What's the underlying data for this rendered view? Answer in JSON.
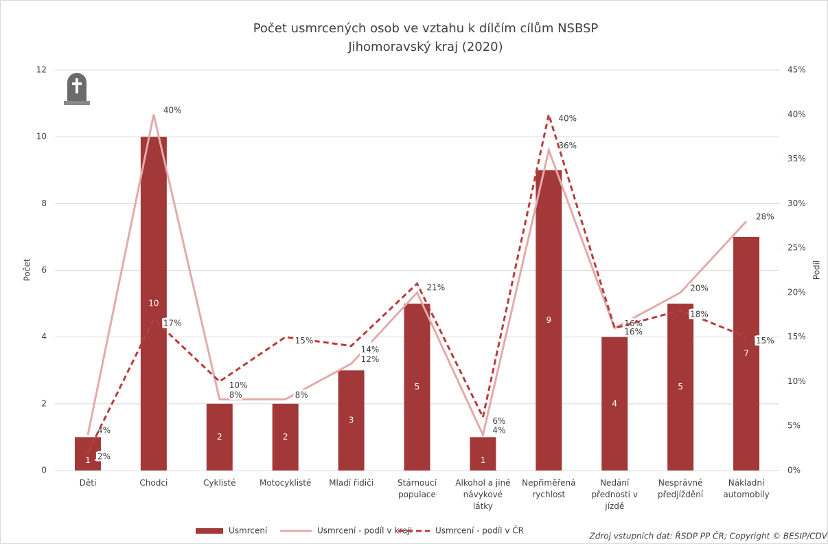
{
  "chart_data": {
    "type": "bar_line",
    "title": "Počet usmrcených osob ve vztahu k dílčím cílům NSBSP",
    "subtitle": "Jihomoravský kraj (2020)",
    "y_label": "Počet",
    "y2_label": "Podíl",
    "source": "Zdroj vstupních dat: ŘSDP PP ČR; Copyright © BESIP/CDV",
    "categories": [
      "Děti",
      "Chodci",
      "Cyklisté",
      "Motocyklisté",
      "Mladí řidiči",
      "Stárnoucí populace",
      "Alkohol a jiné návykové látky",
      "Nepřiměřená rychlost",
      "Nedání přednosti v jízdě",
      "Nesprávné předjíždění",
      "Nákladní automobily"
    ],
    "series": [
      {
        "name": "Usmrcení",
        "color": "#a33838",
        "kind": "bar",
        "values": [
          1,
          10,
          2,
          2,
          3,
          5,
          1,
          9,
          4,
          5,
          7
        ]
      },
      {
        "name": "Usmrcení - podíl v kraji",
        "color": "#e3aaaa",
        "kind": "line",
        "axis": "y2",
        "values": [
          4,
          40,
          8,
          8,
          12,
          20,
          4,
          36,
          16,
          20,
          28
        ],
        "value_labels": [
          "4%",
          "40%",
          "8%",
          "8%",
          "12%",
          "20%",
          "4%",
          "36%",
          "16%",
          "20%",
          "28%"
        ]
      },
      {
        "name": "Usmrcení - podíl v ČR",
        "color": "#b83c3c",
        "kind": "dashed",
        "axis": "y2",
        "values": [
          2,
          17,
          10,
          15,
          14,
          21,
          6,
          40,
          16,
          18,
          15
        ],
        "value_labels": [
          "2%",
          "17%",
          "10%",
          "15%",
          "14%",
          "21%",
          "6%",
          "40%",
          "16%",
          "18%",
          "15%"
        ]
      }
    ],
    "ylim": [
      0,
      12
    ],
    "yticks": [
      0,
      2,
      4,
      6,
      8,
      10,
      12
    ],
    "y2lim": [
      0,
      45
    ],
    "y2ticks": [
      {
        "value": 0,
        "label": "0%"
      },
      {
        "value": 5,
        "label": "5%"
      },
      {
        "value": 10,
        "label": "10%"
      },
      {
        "value": 15,
        "label": "15%"
      },
      {
        "value": 20,
        "label": "20%"
      },
      {
        "value": 25,
        "label": "25%"
      },
      {
        "value": 30,
        "label": "30%"
      },
      {
        "value": 35,
        "label": "35%"
      },
      {
        "value": 40,
        "label": "40%"
      },
      {
        "value": 45,
        "label": "45%"
      }
    ],
    "grid": true
  }
}
